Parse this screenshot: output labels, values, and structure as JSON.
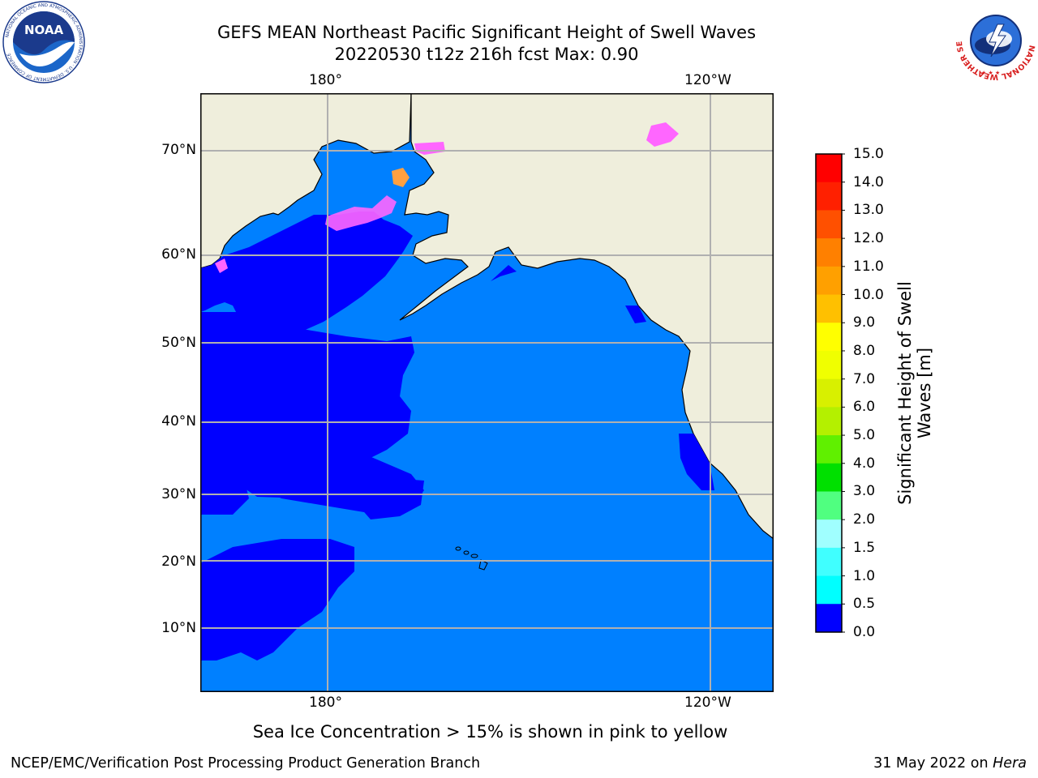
{
  "header": {
    "title_line1": "GEFS MEAN Northeast Pacific Significant Height of Swell Waves",
    "title_line2": "20220530 t12z 216h fcst   Max: 0.90"
  },
  "logos": {
    "left": "noaa-logo",
    "left_text": "NOAA",
    "left_ring_text": "NATIONAL OCEANIC AND ATMOSPHERIC ADMINISTRATION · U.S. DEPARTMENT OF COMMERCE",
    "right": "nws-logo",
    "right_ring_text": "NATIONAL WEATHER SERVICE"
  },
  "map": {
    "lon_labels_top": [
      "180°",
      "120°W"
    ],
    "lon_labels_bottom": [
      "180°",
      "120°W"
    ],
    "lat_labels": [
      "70°N",
      "60°N",
      "50°N",
      "40°N",
      "30°N",
      "20°N",
      "10°N"
    ],
    "colors": {
      "land": "#efeedc",
      "sea_0_05": "#0000ff",
      "sea_05_10": "#0080ff",
      "ice_pink": "#ff66ff",
      "ice_orange": "#ffa040",
      "grid": "#b0b0b0"
    }
  },
  "colorbar": {
    "title": "Significant Height of Swell Waves [m]",
    "title_line1": "Significant Height of Swell",
    "title_line2": "Waves [m]",
    "levels": [
      "15.0",
      "14.0",
      "13.0",
      "12.0",
      "11.0",
      "10.0",
      "9.0",
      "8.0",
      "7.0",
      "6.0",
      "5.0",
      "4.0",
      "3.0",
      "2.0",
      "1.5",
      "1.0",
      "0.5",
      "0.0"
    ],
    "colors": [
      "#ff0000",
      "#ff2000",
      "#ff5000",
      "#ff8000",
      "#ffa000",
      "#ffc000",
      "#ffff00",
      "#f0ff00",
      "#d8f000",
      "#b4f000",
      "#60f000",
      "#00e000",
      "#50ff80",
      "#a0ffff",
      "#40ffff",
      "#00ffff",
      "#0080ff",
      "#0000ff"
    ]
  },
  "note": "Sea Ice Concentration > 15% is shown in pink to yellow",
  "footer": {
    "left": "NCEP/EMC/Verification Post Processing Product Generation Branch",
    "right_date": "31 May 2022 on",
    "right_host": "Hera"
  }
}
